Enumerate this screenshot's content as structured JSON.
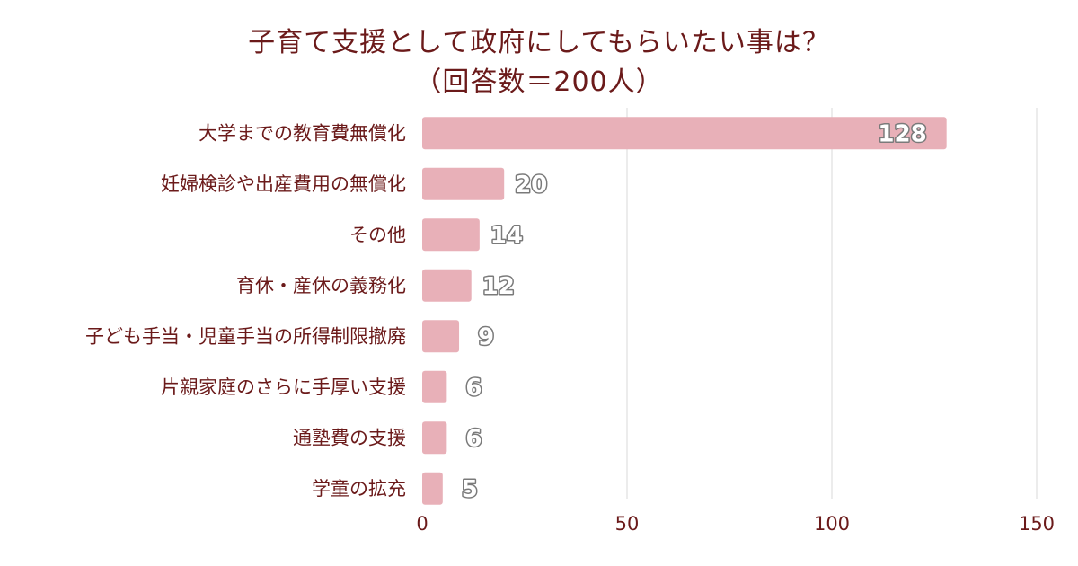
{
  "chart_data": {
    "type": "bar",
    "orientation": "horizontal",
    "title": "子育て支援として政府にしてもらいたい事は？",
    "subtitle": "（回答数＝200人）",
    "categories": [
      "大学までの教育費無償化",
      "妊婦検診や出産費用の無償化",
      "その他",
      "育休・産休の義務化",
      "子ども手当・児童手当の所得制限撤廃",
      "片親家庭のさらに手厚い支援",
      "通塾費の支援",
      "学童の拡充"
    ],
    "values": [
      128,
      20,
      14,
      12,
      9,
      6,
      6,
      5
    ],
    "xlim": [
      0,
      150
    ],
    "xticks": [
      0,
      50,
      100,
      150
    ],
    "grid": true,
    "bar_color": "#e8b0b8",
    "text_color": "#6b1a1a",
    "grid_color": "#d9d9d9"
  }
}
